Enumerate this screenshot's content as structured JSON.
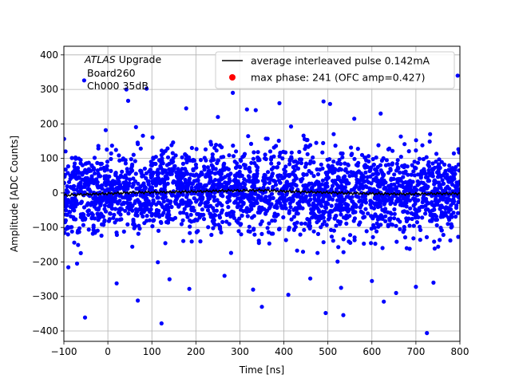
{
  "chart_data": {
    "type": "scatter",
    "title": "",
    "xlabel": "Time [ns]",
    "ylabel": "Amplitude [ADC Counts]",
    "xlim": [
      -100,
      800
    ],
    "ylim": [
      -430,
      425
    ],
    "xticks": [
      -100,
      0,
      100,
      200,
      300,
      400,
      500,
      600,
      700,
      800
    ],
    "yticks": [
      -400,
      -300,
      -200,
      -100,
      0,
      100,
      200,
      300,
      400
    ],
    "grid": true,
    "legend_position": "top-right",
    "annotation": {
      "experiment": "ATLAS",
      "experiment_suffix": "Upgrade",
      "board": "Board260",
      "channel": "Ch000 35dB"
    },
    "series": [
      {
        "name": "average interleaved pulse 0.142mA",
        "kind": "line",
        "color": "#000000",
        "x": [
          -100,
          -50,
          0,
          50,
          100,
          150,
          200,
          250,
          300,
          350,
          400,
          450,
          500,
          550,
          600,
          650,
          700,
          750,
          800
        ],
        "y": [
          -7,
          -4,
          -2,
          1,
          2,
          3,
          4,
          6,
          7,
          8,
          5,
          3,
          1,
          -1,
          -2,
          -3,
          -3,
          -2,
          -2
        ]
      },
      {
        "name": "max phase: 241 (OFC amp=0.427)",
        "kind": "scatter",
        "color": "#0000ff",
        "legend_marker_color": "#ff0000",
        "core_std": 60,
        "outliers": [
          {
            "x": -54,
            "y": 326
          },
          {
            "x": 46,
            "y": 267
          },
          {
            "x": 88,
            "y": 302
          },
          {
            "x": 42,
            "y": 300
          },
          {
            "x": 284,
            "y": 290
          },
          {
            "x": 316,
            "y": 242
          },
          {
            "x": 336,
            "y": 240
          },
          {
            "x": 390,
            "y": 260
          },
          {
            "x": 490,
            "y": 265
          },
          {
            "x": 505,
            "y": 258
          },
          {
            "x": 795,
            "y": 340
          },
          {
            "x": 178,
            "y": 245
          },
          {
            "x": 620,
            "y": 230
          },
          {
            "x": 250,
            "y": 220
          },
          {
            "x": 560,
            "y": 215
          },
          {
            "x": -52,
            "y": -361
          },
          {
            "x": 122,
            "y": -378
          },
          {
            "x": 68,
            "y": -312
          },
          {
            "x": 350,
            "y": -330
          },
          {
            "x": 495,
            "y": -348
          },
          {
            "x": 535,
            "y": -354
          },
          {
            "x": 627,
            "y": -315
          },
          {
            "x": 725,
            "y": -406
          },
          {
            "x": 700,
            "y": -272
          },
          {
            "x": 185,
            "y": -278
          },
          {
            "x": 265,
            "y": -240
          },
          {
            "x": 410,
            "y": -295
          },
          {
            "x": 530,
            "y": -275
          },
          {
            "x": 460,
            "y": -248
          },
          {
            "x": 655,
            "y": -290
          },
          {
            "x": 140,
            "y": -250
          },
          {
            "x": 600,
            "y": -255
          },
          {
            "x": 740,
            "y": -260
          },
          {
            "x": 20,
            "y": -262
          },
          {
            "x": 330,
            "y": -280
          }
        ]
      }
    ]
  }
}
